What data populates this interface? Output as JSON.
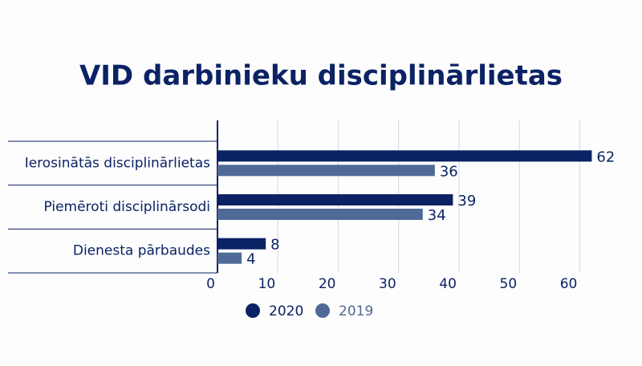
{
  "chart_data": {
    "type": "hbar",
    "title": "VID darbinieku disciplinārlietas",
    "categories": [
      "Ierosinātās disciplinārlietas",
      "Piemēroti disciplinārsodi",
      "Dienesta pārbaudes"
    ],
    "series": [
      {
        "name": "2020",
        "color": "#0b2265",
        "values": [
          62,
          39,
          8
        ]
      },
      {
        "name": "2019",
        "color": "#4f6a96",
        "values": [
          36,
          34,
          4
        ]
      }
    ],
    "xlim": [
      0,
      65
    ],
    "xticks": [
      0,
      10,
      20,
      30,
      40,
      50,
      60
    ],
    "grid": true
  }
}
